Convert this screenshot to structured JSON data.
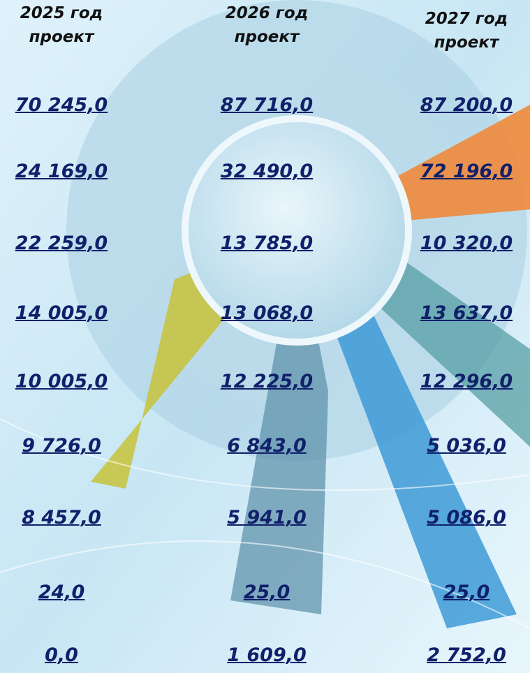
{
  "columns": [
    {
      "year": "2025 год",
      "note": "проект",
      "values": [
        "70 245,0",
        "24 169,0",
        "22 259,0",
        "14 005,0",
        "10 005,0",
        "9 726,0",
        "8 457,0",
        "24,0",
        "0,0"
      ]
    },
    {
      "year": "2026 год",
      "note": "проект",
      "values": [
        "87 716,0",
        "32 490,0",
        "13 785,0",
        "13 068,0",
        "12 225,0",
        "6 843,0",
        "5 941,0",
        "25,0",
        "1 609,0"
      ]
    },
    {
      "year": "2027 год",
      "note": "проект",
      "values": [
        "87 200,0",
        "72 196,0",
        "10 320,0",
        "13 637,0",
        "12 296,0",
        "5 036,0",
        "5 086,0",
        "25,0",
        "2 752,0"
      ]
    }
  ]
}
